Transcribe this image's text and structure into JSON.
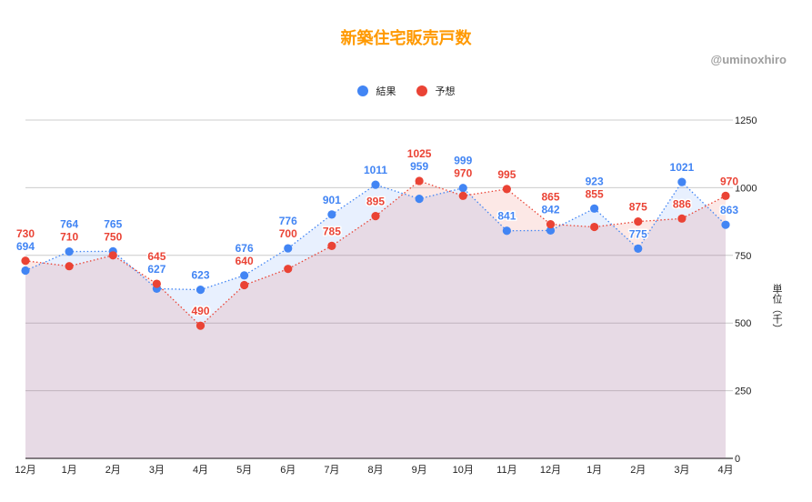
{
  "title": "新築住宅販売戸数",
  "credit": "@uminoxhiro",
  "legend": [
    {
      "label": "結果",
      "color": "#4285f4"
    },
    {
      "label": "予想",
      "color": "#ea4335"
    }
  ],
  "y_axis_title": "単位（千）",
  "chart_data": {
    "type": "line",
    "title": "新築住宅販売戸数",
    "xlabel": "",
    "ylabel": "単位（千）",
    "ylim": [
      0,
      1250
    ],
    "yticks": [
      0,
      250,
      500,
      750,
      1000,
      1250
    ],
    "y_axis_position": "right",
    "grid": true,
    "legend_position": "top",
    "categories": [
      "12月",
      "1月",
      "2月",
      "3月",
      "4月",
      "5月",
      "6月",
      "7月",
      "8月",
      "9月",
      "10月",
      "11月",
      "12月",
      "1月",
      "2月",
      "3月",
      "4月"
    ],
    "series": [
      {
        "name": "結果",
        "color": "#4285f4",
        "values": [
          694,
          764,
          765,
          627,
          623,
          676,
          776,
          901,
          1011,
          959,
          999,
          841,
          842,
          923,
          775,
          1021,
          863
        ]
      },
      {
        "name": "予想",
        "color": "#ea4335",
        "values": [
          730,
          710,
          750,
          645,
          490,
          640,
          700,
          785,
          895,
          1025,
          970,
          995,
          865,
          855,
          875,
          886,
          970
        ]
      }
    ]
  }
}
